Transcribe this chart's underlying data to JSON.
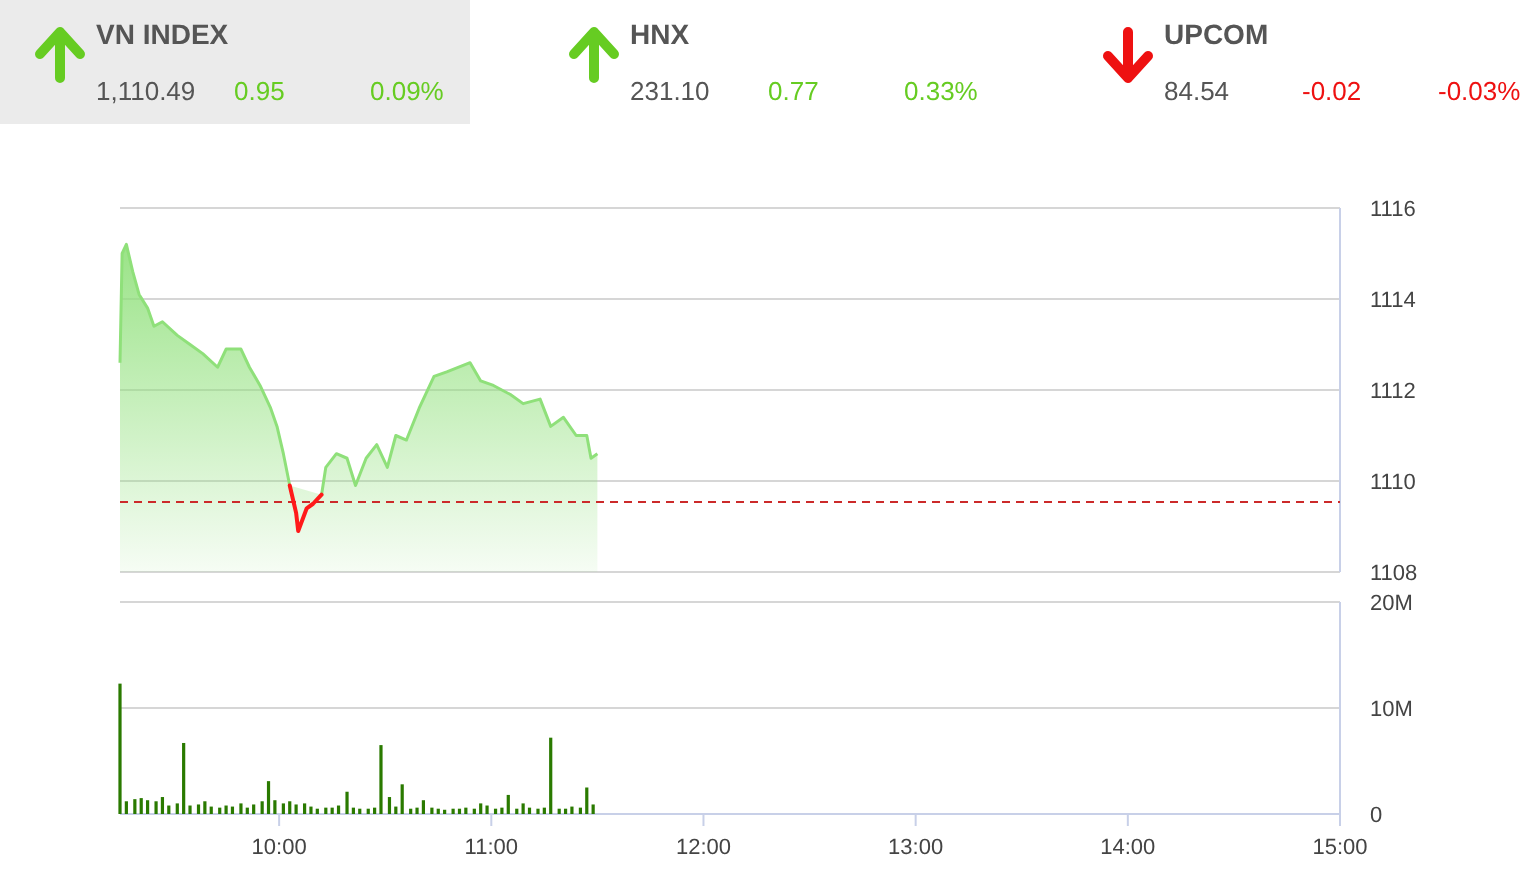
{
  "chart_data": [
    {
      "type": "other",
      "categories": [
        "VN INDEX",
        "HNX",
        "UPCOM"
      ],
      "values": [
        0.95,
        0.77,
        -0.02
      ],
      "value_labels": [
        "0.95",
        "0.77",
        "-0.02"
      ],
      "colors": [
        "#66cc22",
        "#66cc22",
        "#ee1111"
      ],
      "annotations": [
        "1,110.49",
        "0.09%",
        "231.10",
        "0.33%",
        "84.54",
        "-0.03%"
      ]
    },
    {
      "type": "area",
      "xlim": [
        9.25,
        15
      ],
      "ylim": [
        1108,
        1116
      ],
      "yticks": [
        1108,
        1110,
        1112,
        1114,
        1116
      ],
      "grid": "y",
      "tick_labels": "y",
      "x": [
        9.25,
        9.26,
        9.28,
        9.31,
        9.34,
        9.38,
        9.41,
        9.45,
        9.52,
        9.58,
        9.64,
        9.71,
        9.75,
        9.82,
        9.86,
        9.91,
        9.96,
        9.99,
        10.02,
        10.05,
        10.08,
        10.09,
        10.13,
        10.16,
        10.2,
        10.22,
        10.27,
        10.32,
        10.36,
        10.41,
        10.46,
        10.51,
        10.55,
        10.6,
        10.66,
        10.73,
        10.79,
        10.9,
        10.95,
        11.01,
        11.09,
        11.15,
        11.23,
        11.28,
        11.34,
        11.4,
        11.45,
        11.47,
        11.5
      ],
      "series": [
        {
          "type": "area",
          "color": "#8fe07a",
          "values": [
            1112.6,
            1115.0,
            1115.2,
            1114.6,
            1114.1,
            1113.8,
            1113.4,
            1113.5,
            1113.2,
            1113.0,
            1112.8,
            1112.5,
            1112.9,
            1112.9,
            1112.5,
            1112.1,
            1111.6,
            1111.2,
            1110.6,
            1109.9,
            null,
            null,
            null,
            null,
            1109.7,
            1110.3,
            1110.6,
            1110.5,
            1109.9,
            1110.5,
            1110.8,
            1110.3,
            1111.0,
            1110.9,
            1111.6,
            1112.3,
            1112.4,
            1112.6,
            1112.2,
            1112.1,
            1111.9,
            1111.7,
            1111.8,
            1111.2,
            1111.4,
            1111.0,
            1111.0,
            1110.5,
            1110.6
          ]
        },
        {
          "type": "line",
          "color": "#ff1a1a",
          "values": [
            null,
            null,
            null,
            null,
            null,
            null,
            null,
            null,
            null,
            null,
            null,
            null,
            null,
            null,
            null,
            null,
            null,
            null,
            null,
            1109.9,
            1109.3,
            1108.9,
            1109.4,
            1109.5,
            1109.7,
            null,
            null,
            null,
            null,
            null,
            null,
            null,
            null,
            null,
            null,
            null,
            null,
            null,
            null,
            null,
            null,
            null,
            null,
            null,
            null,
            null,
            null,
            null,
            null
          ]
        }
      ],
      "ref_lines": [
        {
          "axis": "y",
          "value": 1109.54,
          "color": "#cc2a2a",
          "line_style": "dashed"
        }
      ]
    },
    {
      "type": "bar",
      "xlim": [
        9.25,
        15
      ],
      "xticks": [
        {
          "value": 10,
          "label": "10:00"
        },
        {
          "value": 11,
          "label": "11:00"
        },
        {
          "value": 12,
          "label": "12:00"
        },
        {
          "value": 13,
          "label": "13:00"
        },
        {
          "value": 14,
          "label": "14:00"
        },
        {
          "value": 15,
          "label": "15:00"
        }
      ],
      "ylim": [
        0,
        20
      ],
      "yticks": [
        0,
        {
          "value": 10,
          "label": "10M"
        },
        {
          "value": 20,
          "label": "20M"
        }
      ],
      "grid": "y",
      "color": "#2a7a00",
      "x": [
        9.25,
        9.28,
        9.32,
        9.35,
        9.38,
        9.42,
        9.45,
        9.48,
        9.52,
        9.55,
        9.58,
        9.62,
        9.65,
        9.68,
        9.72,
        9.75,
        9.78,
        9.82,
        9.85,
        9.88,
        9.92,
        9.95,
        9.98,
        10.02,
        10.05,
        10.08,
        10.12,
        10.15,
        10.18,
        10.22,
        10.25,
        10.28,
        10.32,
        10.35,
        10.38,
        10.42,
        10.45,
        10.48,
        10.52,
        10.55,
        10.58,
        10.62,
        10.65,
        10.68,
        10.72,
        10.75,
        10.78,
        10.82,
        10.85,
        10.88,
        10.92,
        10.95,
        10.98,
        11.02,
        11.05,
        11.08,
        11.12,
        11.15,
        11.18,
        11.22,
        11.25,
        11.28,
        11.32,
        11.35,
        11.38,
        11.42,
        11.45,
        11.48
      ],
      "values": [
        12.3,
        1.2,
        1.4,
        1.5,
        1.3,
        1.2,
        1.6,
        0.8,
        1.0,
        6.7,
        0.8,
        0.9,
        1.2,
        0.7,
        0.6,
        0.8,
        0.7,
        1.0,
        0.6,
        0.9,
        1.2,
        3.1,
        1.3,
        1.0,
        1.2,
        0.9,
        1.0,
        0.7,
        0.5,
        0.6,
        0.6,
        0.8,
        2.1,
        0.6,
        0.5,
        0.5,
        0.6,
        6.5,
        1.6,
        0.7,
        2.8,
        0.5,
        0.6,
        1.3,
        0.6,
        0.5,
        0.4,
        0.5,
        0.5,
        0.6,
        0.5,
        1.0,
        0.8,
        0.5,
        0.6,
        1.8,
        0.5,
        1.0,
        0.6,
        0.5,
        0.6,
        7.2,
        0.5,
        0.5,
        0.7,
        0.6,
        2.5,
        0.9
      ]
    }
  ]
}
